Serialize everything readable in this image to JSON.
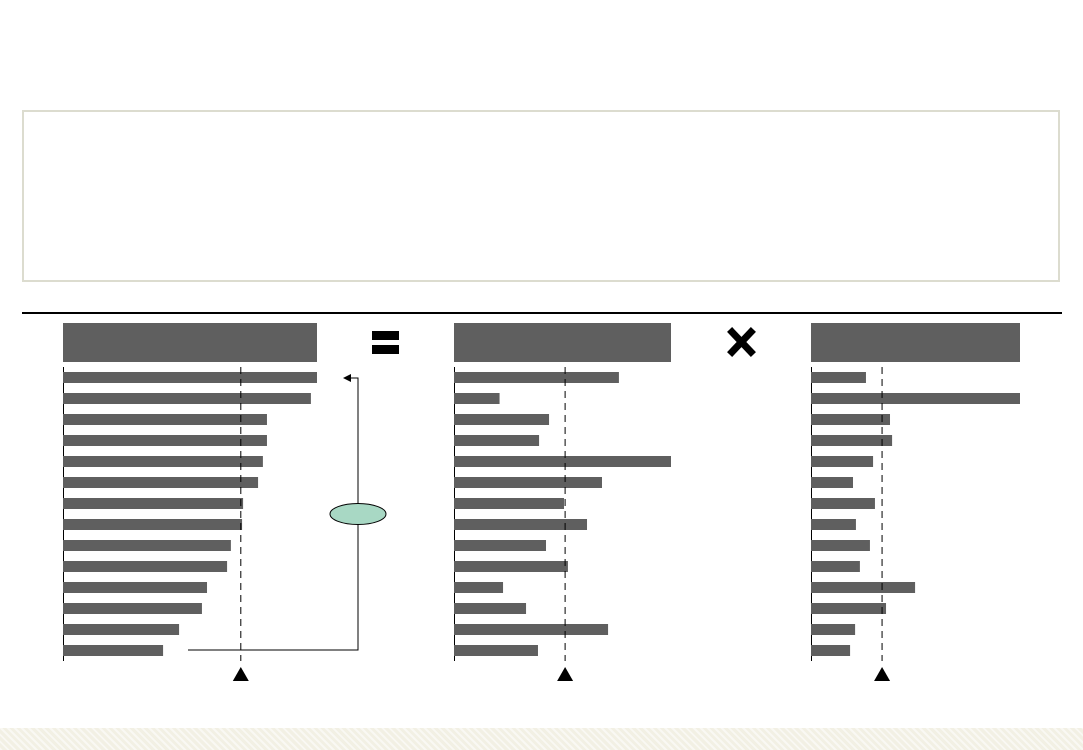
{
  "page": {
    "title": "",
    "text_box": ""
  },
  "colors": {
    "bar": "#5f5f5f",
    "header": "#5f5f5f",
    "axis": "#000000",
    "callout_fill": "#a8d8c4",
    "footer": "#f2f0e4",
    "box_border": "#dcdccf"
  },
  "operators": [
    "equals-icon",
    "multiply-icon"
  ],
  "chart_data": [
    {
      "type": "bar",
      "orientation": "horizontal",
      "title": "",
      "values": [
        1.0,
        0.976,
        0.803,
        0.803,
        0.787,
        0.768,
        0.709,
        0.705,
        0.661,
        0.646,
        0.567,
        0.547,
        0.457,
        0.394
      ],
      "average": 0.7,
      "xlim": [
        0,
        1
      ]
    },
    {
      "type": "bar",
      "orientation": "horizontal",
      "title": "",
      "values": [
        0.76,
        0.21,
        0.438,
        0.392,
        1.0,
        0.682,
        0.507,
        0.613,
        0.424,
        0.525,
        0.226,
        0.332,
        0.71,
        0.387
      ],
      "average": 0.512,
      "xlim": [
        0,
        1
      ]
    },
    {
      "type": "bar",
      "orientation": "horizontal",
      "title": "",
      "values": [
        0.263,
        1.0,
        0.378,
        0.388,
        0.297,
        0.201,
        0.306,
        0.215,
        0.282,
        0.234,
        0.498,
        0.359,
        0.211,
        0.187
      ],
      "average": 0.34,
      "xlim": [
        0,
        1
      ]
    }
  ]
}
